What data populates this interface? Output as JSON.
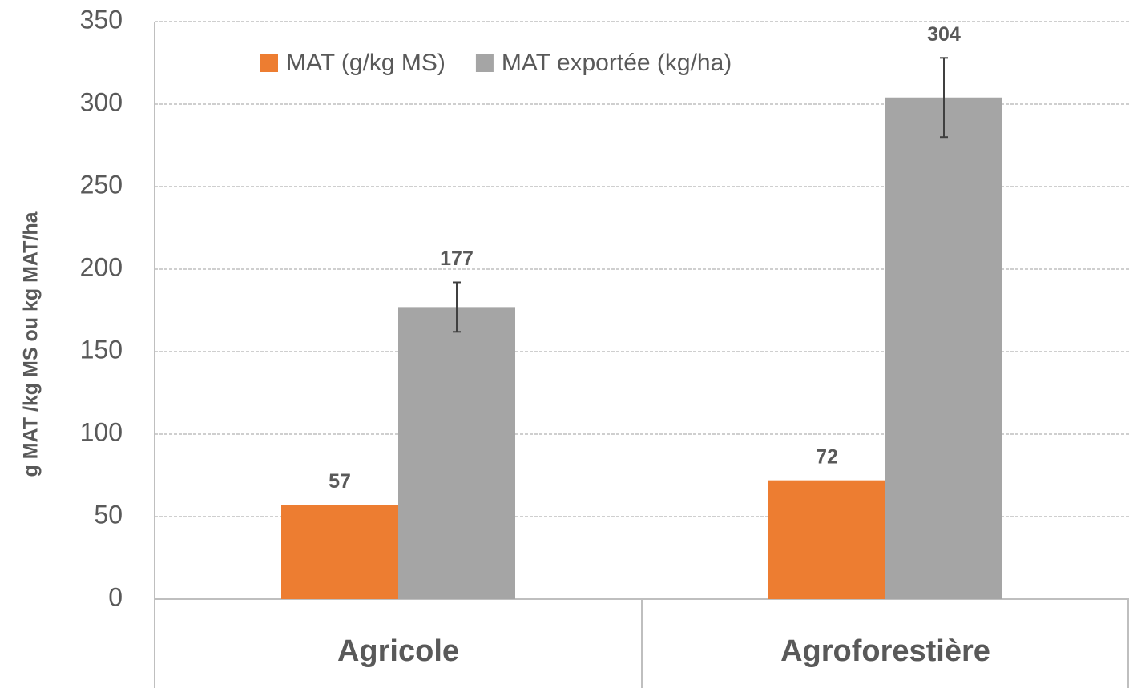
{
  "chart_data": {
    "type": "bar",
    "y_label": "g MAT /kg MS ou kg MAT/ha",
    "categories": [
      "Agricole",
      "Agroforestière"
    ],
    "series": [
      {
        "name": "MAT (g/kg MS)",
        "color": "#ed7d31",
        "values": [
          57,
          72
        ]
      },
      {
        "name": "MAT exportée (kg/ha)",
        "color": "#a5a5a5",
        "values": [
          177,
          304
        ],
        "errors": [
          15,
          24
        ]
      }
    ],
    "ylim": [
      0,
      350
    ],
    "yticks": [
      0,
      50,
      100,
      150,
      200,
      250,
      300,
      350
    ],
    "grid": true,
    "legend": "top"
  }
}
